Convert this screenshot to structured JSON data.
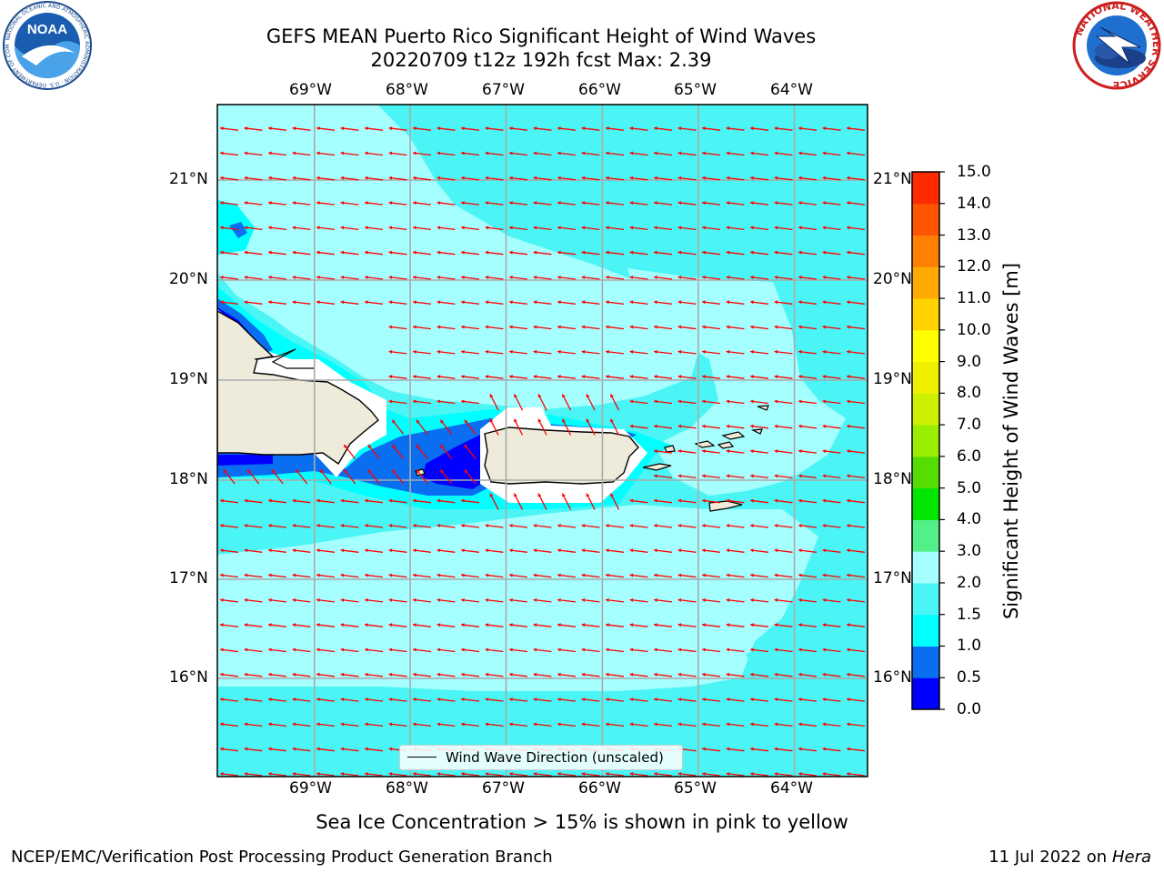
{
  "header": {
    "title_line1": "GEFS MEAN Puerto Rico Significant Height of Wind Waves",
    "title_line2": "20220709 t12z 192h fcst   Max: 2.39"
  },
  "logos": {
    "noaa_text": "NOAA",
    "noaa_ring": "NATIONAL OCEANIC AND ATMOSPHERIC ADMINISTRATION · U.S. DEPARTMENT OF COMMERCE",
    "nws_ring": "NATIONAL WEATHER SERVICE"
  },
  "axes": {
    "longitude_labels": [
      "69°W",
      "68°W",
      "67°W",
      "66°W",
      "65°W",
      "64°W"
    ],
    "latitude_labels": [
      "21°N",
      "20°N",
      "19°N",
      "18°N",
      "17°N",
      "16°N"
    ]
  },
  "colorbar": {
    "label": "Significant Height of Wind Waves [m]",
    "ticks": [
      "15.0",
      "14.0",
      "13.0",
      "12.0",
      "11.0",
      "10.0",
      "9.0",
      "8.0",
      "7.0",
      "6.0",
      "5.0",
      "4.0",
      "3.0",
      "2.0",
      "1.5",
      "1.0",
      "0.5",
      "0.0"
    ],
    "colors": [
      "#0000ff",
      "#0a6ef0",
      "#00ffff",
      "#4cf5f5",
      "#a6ffff",
      "#52f088",
      "#00e600",
      "#55dd00",
      "#99ee00",
      "#ccf000",
      "#eef000",
      "#ffff00",
      "#ffd200",
      "#ffaa00",
      "#ff8000",
      "#ff5500",
      "#ff2a00",
      "#ff0000"
    ]
  },
  "map": {
    "arrow_color": "#ff0000",
    "land_color": "#eeebdb",
    "legend_label": "Wind Wave Direction (unscaled)"
  },
  "footer": {
    "caption": "Sea Ice Concentration > 15% is shown in pink to yellow",
    "left": "NCEP/EMC/Verification Post Processing Product Generation Branch",
    "right_prefix": "11 Jul 2022 on",
    "right_host": "Hera"
  }
}
